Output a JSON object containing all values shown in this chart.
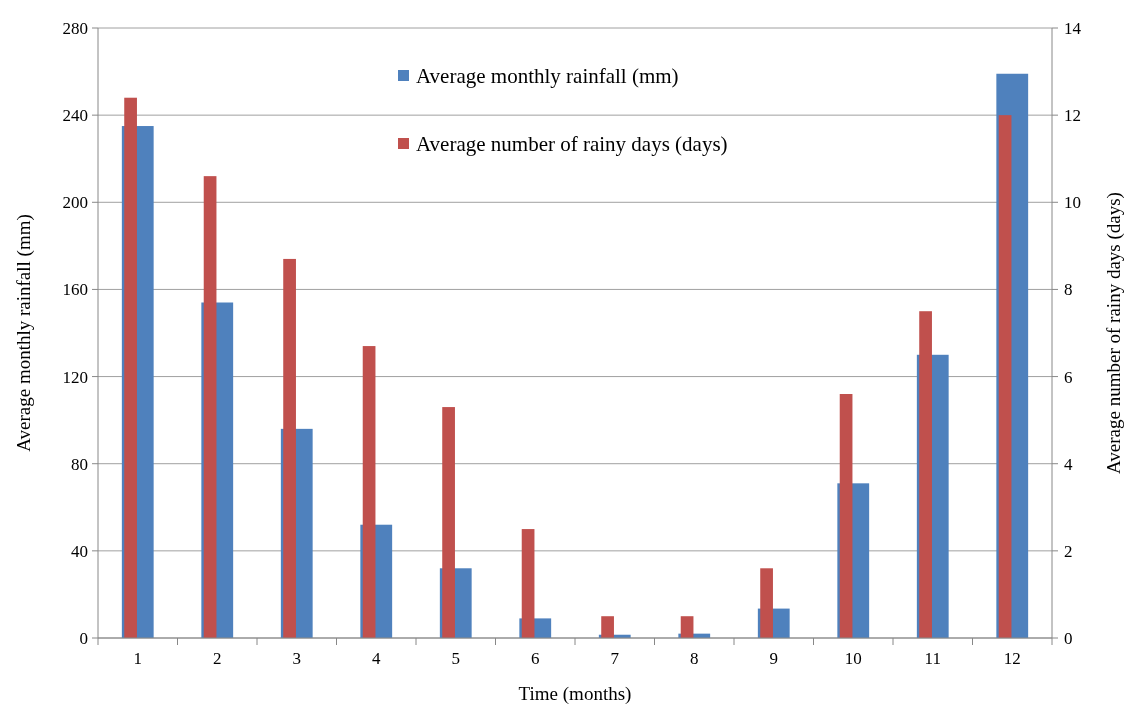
{
  "chart_data": {
    "type": "bar",
    "xlabel": "Time (months)",
    "ylabel": "Average monthly rainfall (mm)",
    "y2label": "Average number of rainy days (days)",
    "categories": [
      "1",
      "2",
      "3",
      "4",
      "5",
      "6",
      "7",
      "8",
      "9",
      "10",
      "11",
      "12"
    ],
    "series": [
      {
        "name": "Average monthly rainfall (mm)",
        "color": "#4f81bd",
        "values": [
          235,
          154,
          96,
          52,
          32,
          9,
          1.5,
          2,
          13.5,
          71,
          130,
          259
        ]
      },
      {
        "name": "Average number of rainy days (days)",
        "color": "#c0504d",
        "axis": "y2",
        "values": [
          12.4,
          10.6,
          8.7,
          6.7,
          5.3,
          2.5,
          0.5,
          0.5,
          1.6,
          5.6,
          7.5,
          12.0
        ]
      }
    ],
    "ylim": [
      0,
      280
    ],
    "yticks": [
      0,
      40,
      80,
      120,
      160,
      200,
      240,
      280
    ],
    "y2lim": [
      0,
      14
    ],
    "y2ticks": [
      0,
      2,
      4,
      6,
      8,
      10,
      12,
      14
    ],
    "grid": "y",
    "legend": "top"
  }
}
